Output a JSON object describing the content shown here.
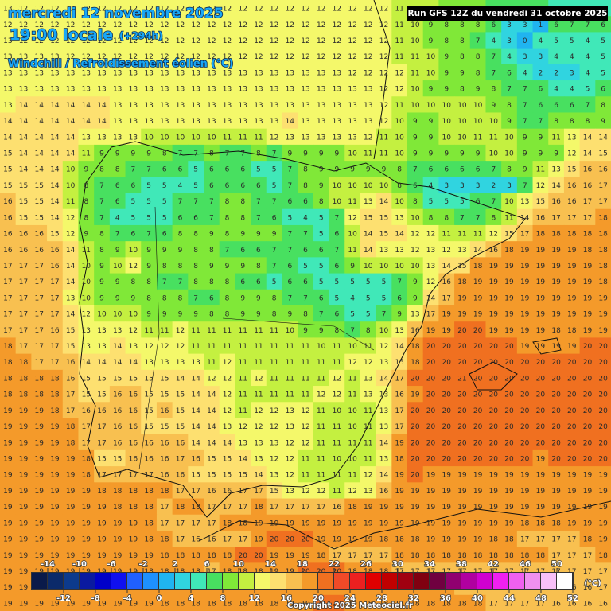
{
  "header": {
    "date": "mercredi 12 novembre 2025",
    "time": "19:00 locale",
    "lead": "(+294h)",
    "field": "Windchill / Refroidissement éolien (°C)",
    "run": "Run GFS 12Z du vendredi 31 octobre 2025"
  },
  "footer": {
    "copyright": "Copyright 2025 Meteociel.fr",
    "unit": "(°C)"
  },
  "colorbar": {
    "ticks": [
      -14,
      -12,
      -10,
      -8,
      -6,
      -4,
      -2,
      0,
      2,
      4,
      6,
      8,
      10,
      12,
      14,
      16,
      18,
      20,
      22,
      24,
      26,
      28,
      30,
      32,
      34,
      36,
      38,
      40,
      42,
      44,
      46,
      48,
      50,
      52
    ],
    "colors": [
      "#0a1a4a",
      "#0b2a6a",
      "#0c3a8c",
      "#0a1aa0",
      "#0000c8",
      "#1010f0",
      "#2060ff",
      "#1e90ff",
      "#20b4f0",
      "#30d4e0",
      "#40e8b8",
      "#48e060",
      "#80e838",
      "#c4f040",
      "#f4f86a",
      "#fde070",
      "#f8c050",
      "#f49a2a",
      "#f07020",
      "#f04a28",
      "#ec2020",
      "#e00000",
      "#c00000",
      "#a00010",
      "#800010",
      "#700040",
      "#900070",
      "#b000a0",
      "#d000d0",
      "#f020f0",
      "#f060f0",
      "#f090f0",
      "#f8c0f8",
      "#ffffff"
    ]
  },
  "grid": [
    [
      13,
      12,
      12,
      12,
      12,
      12,
      12,
      12,
      12,
      12,
      12,
      12,
      12,
      12,
      12,
      12,
      12,
      12,
      12,
      12,
      12,
      12,
      12,
      12,
      12,
      11,
      11,
      10,
      9,
      8,
      8,
      7,
      7,
      6,
      6,
      5,
      5,
      5,
      5
    ],
    [
      12,
      12,
      12,
      12,
      12,
      12,
      12,
      12,
      12,
      12,
      12,
      12,
      12,
      12,
      12,
      12,
      12,
      12,
      12,
      12,
      12,
      12,
      12,
      12,
      12,
      11,
      10,
      9,
      8,
      8,
      8,
      6,
      3,
      3,
      1,
      6,
      7,
      7,
      6
    ],
    [
      13,
      12,
      12,
      12,
      12,
      12,
      12,
      12,
      12,
      12,
      12,
      12,
      12,
      12,
      12,
      12,
      12,
      12,
      12,
      12,
      12,
      12,
      12,
      12,
      12,
      11,
      10,
      9,
      8,
      8,
      7,
      4,
      3,
      0,
      4,
      5,
      5,
      4,
      5
    ],
    [
      13,
      13,
      13,
      13,
      12,
      12,
      12,
      12,
      12,
      12,
      12,
      12,
      12,
      12,
      12,
      12,
      12,
      12,
      12,
      12,
      12,
      12,
      12,
      12,
      12,
      11,
      11,
      10,
      9,
      8,
      8,
      7,
      4,
      3,
      3,
      4,
      4,
      4,
      5
    ],
    [
      13,
      13,
      13,
      13,
      13,
      13,
      13,
      13,
      13,
      13,
      13,
      13,
      13,
      13,
      13,
      13,
      13,
      13,
      13,
      13,
      13,
      13,
      12,
      12,
      12,
      12,
      11,
      10,
      9,
      9,
      8,
      7,
      6,
      4,
      2,
      2,
      3,
      4,
      5
    ],
    [
      13,
      13,
      13,
      13,
      13,
      13,
      13,
      13,
      13,
      13,
      13,
      13,
      13,
      13,
      13,
      13,
      13,
      13,
      13,
      13,
      13,
      13,
      13,
      13,
      12,
      12,
      10,
      9,
      9,
      8,
      9,
      8,
      7,
      7,
      6,
      4,
      4,
      5,
      6
    ],
    [
      13,
      14,
      14,
      14,
      14,
      14,
      14,
      13,
      13,
      13,
      13,
      13,
      13,
      13,
      13,
      13,
      13,
      13,
      13,
      13,
      13,
      13,
      13,
      13,
      12,
      11,
      10,
      10,
      10,
      10,
      10,
      9,
      8,
      7,
      6,
      6,
      6,
      7,
      8
    ],
    [
      14,
      14,
      14,
      14,
      14,
      14,
      14,
      13,
      13,
      13,
      13,
      13,
      13,
      13,
      13,
      13,
      13,
      13,
      14,
      13,
      13,
      13,
      13,
      13,
      12,
      10,
      9,
      9,
      10,
      10,
      10,
      10,
      9,
      7,
      7,
      8,
      8,
      8,
      9
    ],
    [
      14,
      14,
      14,
      14,
      14,
      13,
      13,
      13,
      13,
      10,
      10,
      10,
      10,
      10,
      11,
      11,
      11,
      12,
      13,
      13,
      13,
      13,
      13,
      12,
      11,
      10,
      9,
      9,
      10,
      10,
      11,
      11,
      10,
      9,
      9,
      11,
      13,
      14,
      14
    ],
    [
      15,
      14,
      14,
      14,
      14,
      11,
      9,
      9,
      9,
      9,
      8,
      7,
      7,
      8,
      7,
      7,
      8,
      7,
      9,
      9,
      9,
      9,
      10,
      11,
      11,
      10,
      9,
      9,
      9,
      9,
      9,
      10,
      10,
      9,
      9,
      9,
      12,
      14,
      15
    ],
    [
      15,
      14,
      14,
      14,
      10,
      9,
      8,
      8,
      7,
      7,
      6,
      6,
      5,
      6,
      6,
      6,
      5,
      5,
      7,
      8,
      9,
      9,
      9,
      9,
      9,
      8,
      7,
      6,
      6,
      6,
      6,
      7,
      8,
      9,
      11,
      13,
      15,
      16,
      16
    ],
    [
      15,
      15,
      15,
      14,
      10,
      8,
      7,
      6,
      6,
      5,
      5,
      4,
      5,
      6,
      6,
      6,
      6,
      5,
      7,
      8,
      9,
      10,
      10,
      10,
      10,
      8,
      6,
      4,
      3,
      3,
      3,
      2,
      3,
      7,
      12,
      14,
      16,
      16,
      17
    ],
    [
      16,
      15,
      15,
      14,
      11,
      8,
      7,
      6,
      5,
      5,
      5,
      7,
      7,
      7,
      8,
      8,
      7,
      7,
      6,
      6,
      8,
      10,
      11,
      13,
      14,
      10,
      8,
      5,
      5,
      5,
      6,
      7,
      10,
      13,
      15,
      16,
      16,
      17,
      17
    ],
    [
      16,
      15,
      15,
      14,
      12,
      8,
      7,
      4,
      5,
      5,
      5,
      6,
      6,
      7,
      8,
      8,
      7,
      6,
      5,
      4,
      5,
      7,
      12,
      15,
      15,
      13,
      10,
      8,
      8,
      7,
      7,
      8,
      11,
      14,
      16,
      17,
      17,
      17,
      18
    ],
    [
      16,
      16,
      16,
      15,
      12,
      9,
      8,
      7,
      6,
      7,
      6,
      8,
      8,
      9,
      8,
      9,
      9,
      9,
      7,
      7,
      5,
      6,
      10,
      14,
      15,
      14,
      12,
      12,
      11,
      11,
      11,
      12,
      15,
      17,
      18,
      18,
      18,
      18,
      18
    ],
    [
      16,
      16,
      16,
      16,
      14,
      11,
      8,
      9,
      10,
      9,
      9,
      9,
      8,
      8,
      7,
      6,
      6,
      7,
      7,
      6,
      6,
      7,
      11,
      14,
      13,
      13,
      12,
      13,
      12,
      13,
      14,
      16,
      18,
      19,
      19,
      19,
      19,
      18,
      18
    ],
    [
      17,
      17,
      17,
      16,
      14,
      10,
      9,
      10,
      12,
      9,
      8,
      8,
      8,
      9,
      9,
      9,
      8,
      7,
      6,
      5,
      5,
      6,
      9,
      10,
      10,
      10,
      10,
      13,
      14,
      15,
      18,
      19,
      19,
      19,
      19,
      19,
      19,
      19,
      18
    ],
    [
      17,
      17,
      17,
      17,
      14,
      10,
      9,
      9,
      8,
      8,
      7,
      7,
      8,
      8,
      8,
      6,
      6,
      5,
      6,
      6,
      5,
      5,
      5,
      5,
      5,
      7,
      9,
      12,
      16,
      18,
      19,
      19,
      19,
      19,
      19,
      19,
      19,
      19,
      18
    ],
    [
      17,
      17,
      17,
      17,
      13,
      10,
      9,
      9,
      9,
      8,
      8,
      8,
      7,
      6,
      8,
      9,
      9,
      8,
      7,
      7,
      6,
      5,
      4,
      5,
      5,
      6,
      9,
      14,
      17,
      19,
      19,
      19,
      19,
      19,
      19,
      19,
      19,
      19,
      19
    ],
    [
      17,
      17,
      17,
      17,
      14,
      12,
      10,
      10,
      10,
      9,
      9,
      9,
      9,
      8,
      8,
      9,
      9,
      8,
      9,
      8,
      7,
      6,
      5,
      5,
      7,
      9,
      13,
      17,
      19,
      19,
      19,
      19,
      19,
      19,
      19,
      19,
      19,
      19,
      19
    ],
    [
      17,
      17,
      17,
      16,
      15,
      13,
      13,
      13,
      12,
      11,
      11,
      12,
      11,
      11,
      11,
      11,
      11,
      11,
      10,
      9,
      9,
      8,
      7,
      8,
      10,
      13,
      16,
      19,
      19,
      20,
      20,
      19,
      19,
      19,
      19,
      18,
      18,
      19,
      19
    ],
    [
      18,
      17,
      17,
      17,
      15,
      13,
      13,
      14,
      13,
      12,
      12,
      12,
      11,
      11,
      11,
      11,
      11,
      11,
      11,
      11,
      10,
      11,
      10,
      11,
      12,
      14,
      18,
      20,
      20,
      20,
      20,
      20,
      20,
      19,
      19,
      19,
      19,
      20,
      20
    ],
    [
      18,
      18,
      17,
      17,
      16,
      14,
      14,
      14,
      14,
      13,
      13,
      13,
      13,
      11,
      12,
      11,
      11,
      11,
      11,
      11,
      11,
      11,
      12,
      12,
      13,
      15,
      18,
      20,
      20,
      20,
      20,
      20,
      20,
      20,
      20,
      20,
      20,
      20,
      20
    ],
    [
      18,
      18,
      18,
      18,
      16,
      15,
      15,
      15,
      15,
      15,
      15,
      14,
      14,
      12,
      12,
      11,
      12,
      11,
      11,
      11,
      11,
      12,
      11,
      13,
      14,
      17,
      20,
      20,
      20,
      21,
      20,
      20,
      20,
      20,
      20,
      20,
      20,
      20,
      20
    ],
    [
      18,
      18,
      18,
      18,
      17,
      15,
      15,
      16,
      16,
      15,
      15,
      15,
      14,
      14,
      12,
      11,
      11,
      11,
      11,
      11,
      12,
      12,
      11,
      13,
      13,
      16,
      19,
      20,
      20,
      20,
      20,
      20,
      20,
      20,
      20,
      20,
      20,
      20,
      20
    ],
    [
      19,
      19,
      19,
      18,
      17,
      16,
      16,
      16,
      16,
      15,
      16,
      15,
      14,
      14,
      12,
      11,
      12,
      12,
      13,
      12,
      11,
      10,
      10,
      11,
      13,
      17,
      20,
      20,
      20,
      20,
      20,
      20,
      20,
      20,
      20,
      20,
      20,
      20,
      20
    ],
    [
      19,
      19,
      19,
      19,
      18,
      17,
      17,
      16,
      16,
      15,
      15,
      15,
      14,
      14,
      13,
      12,
      12,
      12,
      13,
      12,
      11,
      11,
      10,
      11,
      13,
      17,
      20,
      20,
      20,
      20,
      20,
      20,
      20,
      20,
      20,
      20,
      20,
      20,
      20
    ],
    [
      19,
      19,
      19,
      19,
      18,
      17,
      17,
      16,
      16,
      16,
      16,
      16,
      14,
      14,
      14,
      13,
      13,
      13,
      12,
      12,
      11,
      11,
      11,
      11,
      14,
      19,
      20,
      20,
      20,
      20,
      20,
      20,
      20,
      20,
      20,
      20,
      20,
      20,
      20
    ],
    [
      19,
      19,
      19,
      19,
      19,
      18,
      15,
      15,
      16,
      16,
      16,
      17,
      16,
      15,
      15,
      14,
      13,
      12,
      12,
      11,
      11,
      10,
      10,
      11,
      13,
      18,
      20,
      20,
      20,
      20,
      20,
      20,
      20,
      20,
      19,
      20,
      20,
      20,
      20
    ],
    [
      19,
      19,
      19,
      19,
      19,
      18,
      17,
      17,
      17,
      17,
      16,
      16,
      15,
      15,
      15,
      15,
      14,
      13,
      12,
      11,
      11,
      11,
      11,
      12,
      14,
      19,
      20,
      19,
      19,
      19,
      19,
      19,
      19,
      19,
      19,
      19,
      19,
      19,
      19
    ],
    [
      19,
      19,
      19,
      19,
      19,
      19,
      18,
      18,
      18,
      18,
      18,
      17,
      17,
      16,
      16,
      17,
      17,
      15,
      13,
      12,
      12,
      11,
      12,
      13,
      16,
      19,
      19,
      19,
      19,
      19,
      19,
      19,
      19,
      19,
      19,
      19,
      19,
      19,
      19
    ],
    [
      19,
      19,
      19,
      19,
      19,
      19,
      19,
      18,
      18,
      18,
      17,
      18,
      18,
      17,
      17,
      17,
      18,
      17,
      17,
      17,
      17,
      16,
      18,
      19,
      19,
      19,
      19,
      19,
      19,
      19,
      19,
      19,
      19,
      19,
      19,
      19,
      19,
      19,
      19
    ],
    [
      19,
      19,
      19,
      19,
      19,
      19,
      19,
      19,
      19,
      18,
      17,
      17,
      17,
      17,
      18,
      18,
      19,
      19,
      19,
      19,
      19,
      19,
      19,
      19,
      19,
      19,
      19,
      19,
      19,
      19,
      19,
      19,
      19,
      18,
      18,
      18,
      19,
      19,
      19
    ],
    [
      19,
      19,
      19,
      19,
      19,
      19,
      19,
      19,
      19,
      18,
      18,
      17,
      16,
      16,
      17,
      17,
      19,
      20,
      20,
      20,
      19,
      19,
      19,
      19,
      18,
      18,
      18,
      19,
      19,
      19,
      19,
      18,
      18,
      17,
      17,
      17,
      17,
      18,
      19
    ],
    [
      19,
      19,
      19,
      19,
      19,
      19,
      19,
      19,
      19,
      19,
      18,
      18,
      18,
      18,
      18,
      20,
      20,
      19,
      19,
      19,
      18,
      17,
      17,
      17,
      17,
      18,
      18,
      18,
      18,
      18,
      18,
      18,
      18,
      18,
      18,
      17,
      17,
      17,
      18
    ],
    [
      19,
      19,
      19,
      19,
      19,
      19,
      19,
      19,
      19,
      18,
      18,
      18,
      18,
      17,
      18,
      18,
      18,
      19,
      19,
      20,
      20,
      20,
      18,
      18,
      18,
      17,
      17,
      17,
      17,
      17,
      17,
      17,
      17,
      17,
      17,
      17,
      17,
      17,
      17
    ],
    [
      19,
      19,
      19,
      19,
      19,
      19,
      19,
      19,
      19,
      18,
      18,
      18,
      18,
      18,
      18,
      18,
      18,
      19,
      19,
      18,
      18,
      18,
      18,
      18,
      18,
      18,
      18,
      18,
      18,
      17,
      17,
      16,
      16,
      16,
      16,
      16,
      16,
      16,
      17
    ],
    [
      19,
      19,
      19,
      19,
      19,
      19,
      19,
      19,
      19,
      19,
      18,
      18,
      18,
      18,
      18,
      18,
      18,
      18,
      19,
      19,
      20,
      20,
      19,
      18,
      18,
      18,
      18,
      18,
      18,
      18,
      18,
      17,
      17,
      17,
      17,
      16,
      16,
      16,
      16
    ]
  ]
}
